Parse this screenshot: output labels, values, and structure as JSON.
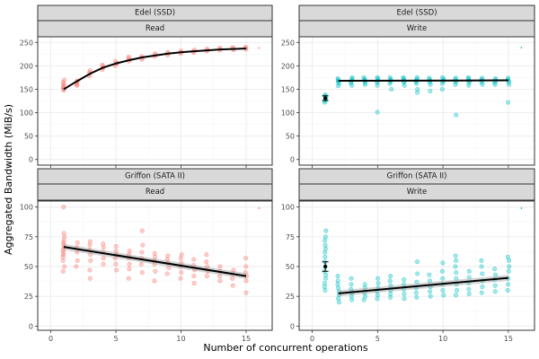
{
  "chart_data": {
    "type": "scatter",
    "xlabel": "Number of concurrent operations",
    "ylabel": "Aggregated Bandwidth (MiB/s)",
    "colors": {
      "Read": "#f8766d",
      "Write": "#00bfc4"
    },
    "trend_color": "#000000",
    "panels": [
      {
        "machine": "Edel (SSD)",
        "operation": "Read",
        "xlim": [
          -1,
          17
        ],
        "ylim": [
          -12,
          262
        ],
        "xticks": [
          0,
          5,
          10,
          15
        ],
        "yticks": [
          0,
          50,
          100,
          150,
          200,
          250
        ],
        "trend": {
          "type": "log-fit",
          "x": [
            1,
            2,
            3,
            4,
            5,
            6,
            7,
            8,
            9,
            10,
            11,
            12,
            13,
            14,
            15
          ],
          "y": [
            150,
            167,
            183,
            196,
            205,
            212,
            218,
            222,
            226,
            229,
            231,
            233,
            235,
            236,
            237
          ]
        },
        "summary_point": null,
        "outlier": {
          "x": 16,
          "y": 238
        },
        "points": [
          {
            "x": 1,
            "y": [
              148,
              150,
              152,
              155,
              158,
              161,
              165,
              170
            ]
          },
          {
            "x": 2,
            "y": [
              158,
              160,
              163,
              166,
              168
            ]
          },
          {
            "x": 3,
            "y": [
              178,
              182,
              186,
              190
            ]
          },
          {
            "x": 4,
            "y": [
              192,
              196,
              199,
              202
            ]
          },
          {
            "x": 5,
            "y": [
              200,
              204,
              206,
              210
            ]
          },
          {
            "x": 6,
            "y": [
              210,
              213,
              216,
              219
            ]
          },
          {
            "x": 7,
            "y": [
              214,
              217,
              220
            ]
          },
          {
            "x": 8,
            "y": [
              220,
              223,
              226
            ]
          },
          {
            "x": 9,
            "y": [
              223,
              226,
              229
            ]
          },
          {
            "x": 10,
            "y": [
              226,
              229,
              232
            ]
          },
          {
            "x": 11,
            "y": [
              228,
              231,
              234
            ]
          },
          {
            "x": 12,
            "y": [
              231,
              234,
              236
            ]
          },
          {
            "x": 13,
            "y": [
              233,
              236,
              238
            ]
          },
          {
            "x": 14,
            "y": [
              234,
              237,
              239
            ]
          },
          {
            "x": 15,
            "y": [
              235,
              238,
              240
            ]
          }
        ]
      },
      {
        "machine": "Edel (SSD)",
        "operation": "Write",
        "xlim": [
          -1,
          17
        ],
        "ylim": [
          -12,
          262
        ],
        "xticks": [
          0,
          5,
          10,
          15
        ],
        "yticks": [
          0,
          50,
          100,
          150,
          200,
          250
        ],
        "trend": {
          "type": "linear",
          "x": [
            2,
            15
          ],
          "y": [
            168,
            169
          ]
        },
        "summary_point": {
          "x": 1,
          "y": 131,
          "err": [
            126,
            136
          ]
        },
        "outlier": {
          "x": 16,
          "y": 239
        },
        "points": [
          {
            "x": 1,
            "y": [
              122,
              125,
              128,
              130,
              132,
              134,
              136,
              138
            ]
          },
          {
            "x": 2,
            "y": [
              157,
              162,
              165,
              168,
              170,
              173
            ]
          },
          {
            "x": 3,
            "y": [
              158,
              163,
              166,
              169,
              172,
              175
            ]
          },
          {
            "x": 4,
            "y": [
              160,
              164,
              167,
              170,
              172,
              175
            ]
          },
          {
            "x": 5,
            "y": [
              101,
              158,
              164,
              167,
              170,
              173,
              175
            ]
          },
          {
            "x": 6,
            "y": [
              150,
              162,
              166,
              169,
              172,
              175
            ]
          },
          {
            "x": 7,
            "y": [
              158,
              164,
              167,
              170,
              173,
              175
            ]
          },
          {
            "x": 8,
            "y": [
              143,
              150,
              162,
              166,
              169,
              172,
              175
            ]
          },
          {
            "x": 9,
            "y": [
              146,
              160,
              165,
              168,
              171,
              174
            ]
          },
          {
            "x": 10,
            "y": [
              150,
              162,
              166,
              169,
              172,
              175
            ]
          },
          {
            "x": 11,
            "y": [
              95,
              160,
              165,
              168,
              171,
              174
            ]
          },
          {
            "x": 12,
            "y": [
              158,
              164,
              167,
              170,
              173,
              175
            ]
          },
          {
            "x": 13,
            "y": [
              160,
              165,
              168,
              171,
              174
            ]
          },
          {
            "x": 14,
            "y": [
              160,
              164,
              167,
              170,
              173
            ]
          },
          {
            "x": 15,
            "y": [
              122,
              160,
              165,
              168,
              171,
              174
            ]
          }
        ]
      },
      {
        "machine": "Griffon (SATA II)",
        "operation": "Read",
        "xlim": [
          -1,
          17
        ],
        "ylim": [
          -3.5,
          105
        ],
        "xticks": [
          0,
          5,
          10,
          15
        ],
        "yticks": [
          0,
          25,
          50,
          75,
          100
        ],
        "trend": {
          "type": "linear",
          "x": [
            1,
            15
          ],
          "y": [
            66.5,
            42
          ],
          "band": 2.5
        },
        "summary_point": null,
        "outlier": {
          "x": 16,
          "y": 99
        },
        "points": [
          {
            "x": 1,
            "y": [
              46,
              50,
              55,
              58,
              60,
              62,
              64,
              66,
              68,
              70,
              72,
              75,
              78,
              100
            ]
          },
          {
            "x": 2,
            "y": [
              50,
              55,
              62,
              66,
              70
            ]
          },
          {
            "x": 3,
            "y": [
              40,
              47,
              55,
              60,
              64,
              68,
              71
            ]
          },
          {
            "x": 4,
            "y": [
              52,
              57,
              62,
              66,
              69
            ]
          },
          {
            "x": 5,
            "y": [
              47,
              52,
              57,
              60,
              63,
              67
            ]
          },
          {
            "x": 6,
            "y": [
              40,
              48,
              52,
              57,
              60,
              63
            ]
          },
          {
            "x": 7,
            "y": [
              45,
              52,
              57,
              62,
              68,
              80
            ]
          },
          {
            "x": 8,
            "y": [
              38,
              46,
              52,
              55,
              58,
              61
            ]
          },
          {
            "x": 9,
            "y": [
              44,
              49,
              53,
              56,
              59
            ]
          },
          {
            "x": 10,
            "y": [
              40,
              45,
              50,
              53,
              57,
              60
            ]
          },
          {
            "x": 11,
            "y": [
              36,
              42,
              47,
              51,
              56
            ]
          },
          {
            "x": 12,
            "y": [
              42,
              46,
              50,
              54,
              60
            ]
          },
          {
            "x": 13,
            "y": [
              38,
              42,
              46,
              50
            ]
          },
          {
            "x": 14,
            "y": [
              34,
              40,
              44,
              47
            ]
          },
          {
            "x": 15,
            "y": [
              28,
              38,
              42,
              45,
              50,
              57
            ]
          }
        ]
      },
      {
        "machine": "Griffon (SATA II)",
        "operation": "Write",
        "xlim": [
          -1,
          17
        ],
        "ylim": [
          -3.5,
          105
        ],
        "xticks": [
          0,
          5,
          10,
          15
        ],
        "yticks": [
          0,
          25,
          50,
          75,
          100
        ],
        "trend": {
          "type": "linear",
          "x": [
            2,
            15
          ],
          "y": [
            27.5,
            40.5
          ],
          "band": 2.5
        },
        "summary_point": {
          "x": 1,
          "y": 50,
          "err": [
            46,
            54
          ]
        },
        "outlier": {
          "x": 16,
          "y": 99
        },
        "points": [
          {
            "x": 1,
            "y": [
              30,
              33,
              36,
              40,
              43,
              46,
              50,
              54,
              58,
              62,
              65,
              68,
              72,
              75,
              80
            ]
          },
          {
            "x": 2,
            "y": [
              20,
              23,
              26,
              29,
              32,
              35,
              38,
              42
            ]
          },
          {
            "x": 3,
            "y": [
              22,
              25,
              28,
              31,
              35,
              40
            ]
          },
          {
            "x": 4,
            "y": [
              22,
              25,
              28,
              32,
              35
            ]
          },
          {
            "x": 5,
            "y": [
              23,
              26,
              29,
              32,
              36,
              40
            ]
          },
          {
            "x": 6,
            "y": [
              24,
              27,
              30,
              34,
              38,
              42
            ]
          },
          {
            "x": 7,
            "y": [
              23,
              27,
              31,
              35,
              39
            ]
          },
          {
            "x": 8,
            "y": [
              24,
              28,
              32,
              37,
              44,
              54
            ]
          },
          {
            "x": 9,
            "y": [
              25,
              29,
              33,
              38,
              43
            ]
          },
          {
            "x": 10,
            "y": [
              26,
              30,
              35,
              40,
              46,
              53
            ]
          },
          {
            "x": 11,
            "y": [
              26,
              30,
              35,
              40,
              45,
              50,
              55,
              59
            ]
          },
          {
            "x": 12,
            "y": [
              27,
              31,
              36,
              41,
              46
            ]
          },
          {
            "x": 13,
            "y": [
              28,
              33,
              38,
              44,
              50,
              55
            ]
          },
          {
            "x": 14,
            "y": [
              29,
              34,
              39,
              43,
              48
            ]
          },
          {
            "x": 15,
            "y": [
              30,
              35,
              40,
              46,
              50,
              55,
              58
            ]
          }
        ]
      }
    ]
  }
}
